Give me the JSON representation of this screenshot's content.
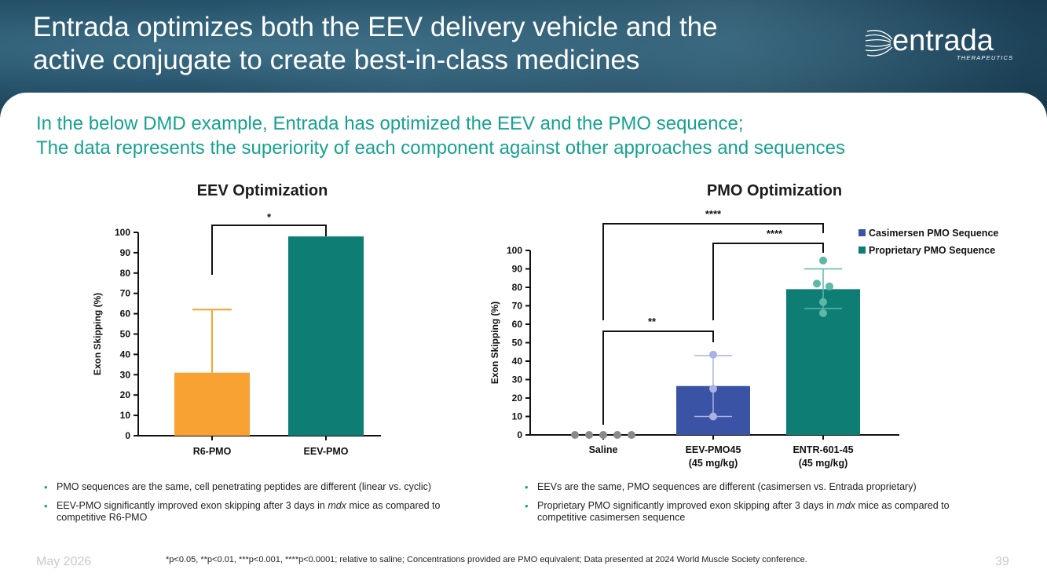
{
  "header": {
    "title_line1": "Entrada optimizes both the EEV delivery vehicle and the",
    "title_line2": "active conjugate to create best-in-class medicines",
    "logo_text": "entrada",
    "logo_subtext": "THERAPEUTICS"
  },
  "subtitle": {
    "line1": "In the below DMD example, Entrada has optimized the EEV and the PMO sequence;",
    "line2": "The data represents the superiority of each component against other approaches and sequences"
  },
  "chart_data": [
    {
      "type": "bar",
      "title": "EEV Optimization",
      "ylabel": "Exon Skipping (%)",
      "ylim": [
        0,
        100
      ],
      "yticks": [
        0,
        10,
        20,
        30,
        40,
        50,
        60,
        70,
        80,
        90,
        100
      ],
      "categories": [
        "R6-PMO",
        "EEV-PMO"
      ],
      "values": [
        31,
        98
      ],
      "error_upper": [
        62,
        null
      ],
      "colors": [
        "#f7a232",
        "#0e7d74"
      ],
      "significance": [
        {
          "from": "R6-PMO",
          "to": "EEV-PMO",
          "label": "*"
        }
      ]
    },
    {
      "type": "bar",
      "title": "PMO Optimization",
      "ylabel": "Exon Skipping (%)",
      "ylim": [
        0,
        100
      ],
      "yticks": [
        0,
        10,
        20,
        30,
        40,
        50,
        60,
        70,
        80,
        90,
        100
      ],
      "categories": [
        "Saline",
        "EEV-PMO45",
        "ENTR-601-45"
      ],
      "category_sublabels": [
        "",
        "(45 mg/kg)",
        "(45 mg/kg)"
      ],
      "values": [
        0,
        26.5,
        79
      ],
      "error_low": [
        null,
        10,
        68.5
      ],
      "error_high": [
        null,
        43,
        90
      ],
      "points": [
        [
          0,
          0,
          0,
          0,
          0
        ],
        [
          43.5,
          25,
          10
        ],
        [
          94.5,
          82,
          80.5,
          72,
          66
        ]
      ],
      "colors": [
        "#888888",
        "#3a53a4",
        "#0e7d74"
      ],
      "point_colors": [
        "#8a8a8a",
        "#aab2e3",
        "#5db8a8"
      ],
      "legend": [
        {
          "label": "Casimersen PMO Sequence",
          "color": "#3a53a4"
        },
        {
          "label": "Proprietary PMO Sequence",
          "color": "#0e7d74"
        }
      ],
      "legend_position": "top-right",
      "significance": [
        {
          "from": "Saline",
          "to": "ENTR-601-45",
          "label": "****"
        },
        {
          "from": "EEV-PMO45",
          "to": "ENTR-601-45",
          "label": "****"
        },
        {
          "from": "Saline",
          "to": "EEV-PMO45",
          "label": "**"
        }
      ]
    }
  ],
  "bullets_left": [
    "PMO sequences are the same, cell penetrating peptides are different (linear vs. cyclic)"
  ],
  "bullets_left_2": {
    "pre": "EEV-PMO significantly improved exon skipping after 3 days in ",
    "em": "mdx",
    "post": " mice as compared to competitive R6-PMO"
  },
  "bullets_right": [
    "EEVs are the same, PMO sequences are different (casimersen vs. Entrada proprietary)"
  ],
  "bullets_right_2": {
    "pre": "Proprietary PMO significantly improved exon skipping after 3 days in ",
    "em": "mdx",
    "post": " mice as compared to competitive casimersen sequence"
  },
  "footer": {
    "date": "May 2026",
    "note": "*p<0.05, **p<0.01, ***p<0.001, ****p<0.0001; relative to saline; Concentrations provided are PMO equivalent; Data presented at 2024 World Muscle Society conference.",
    "page": "39"
  }
}
